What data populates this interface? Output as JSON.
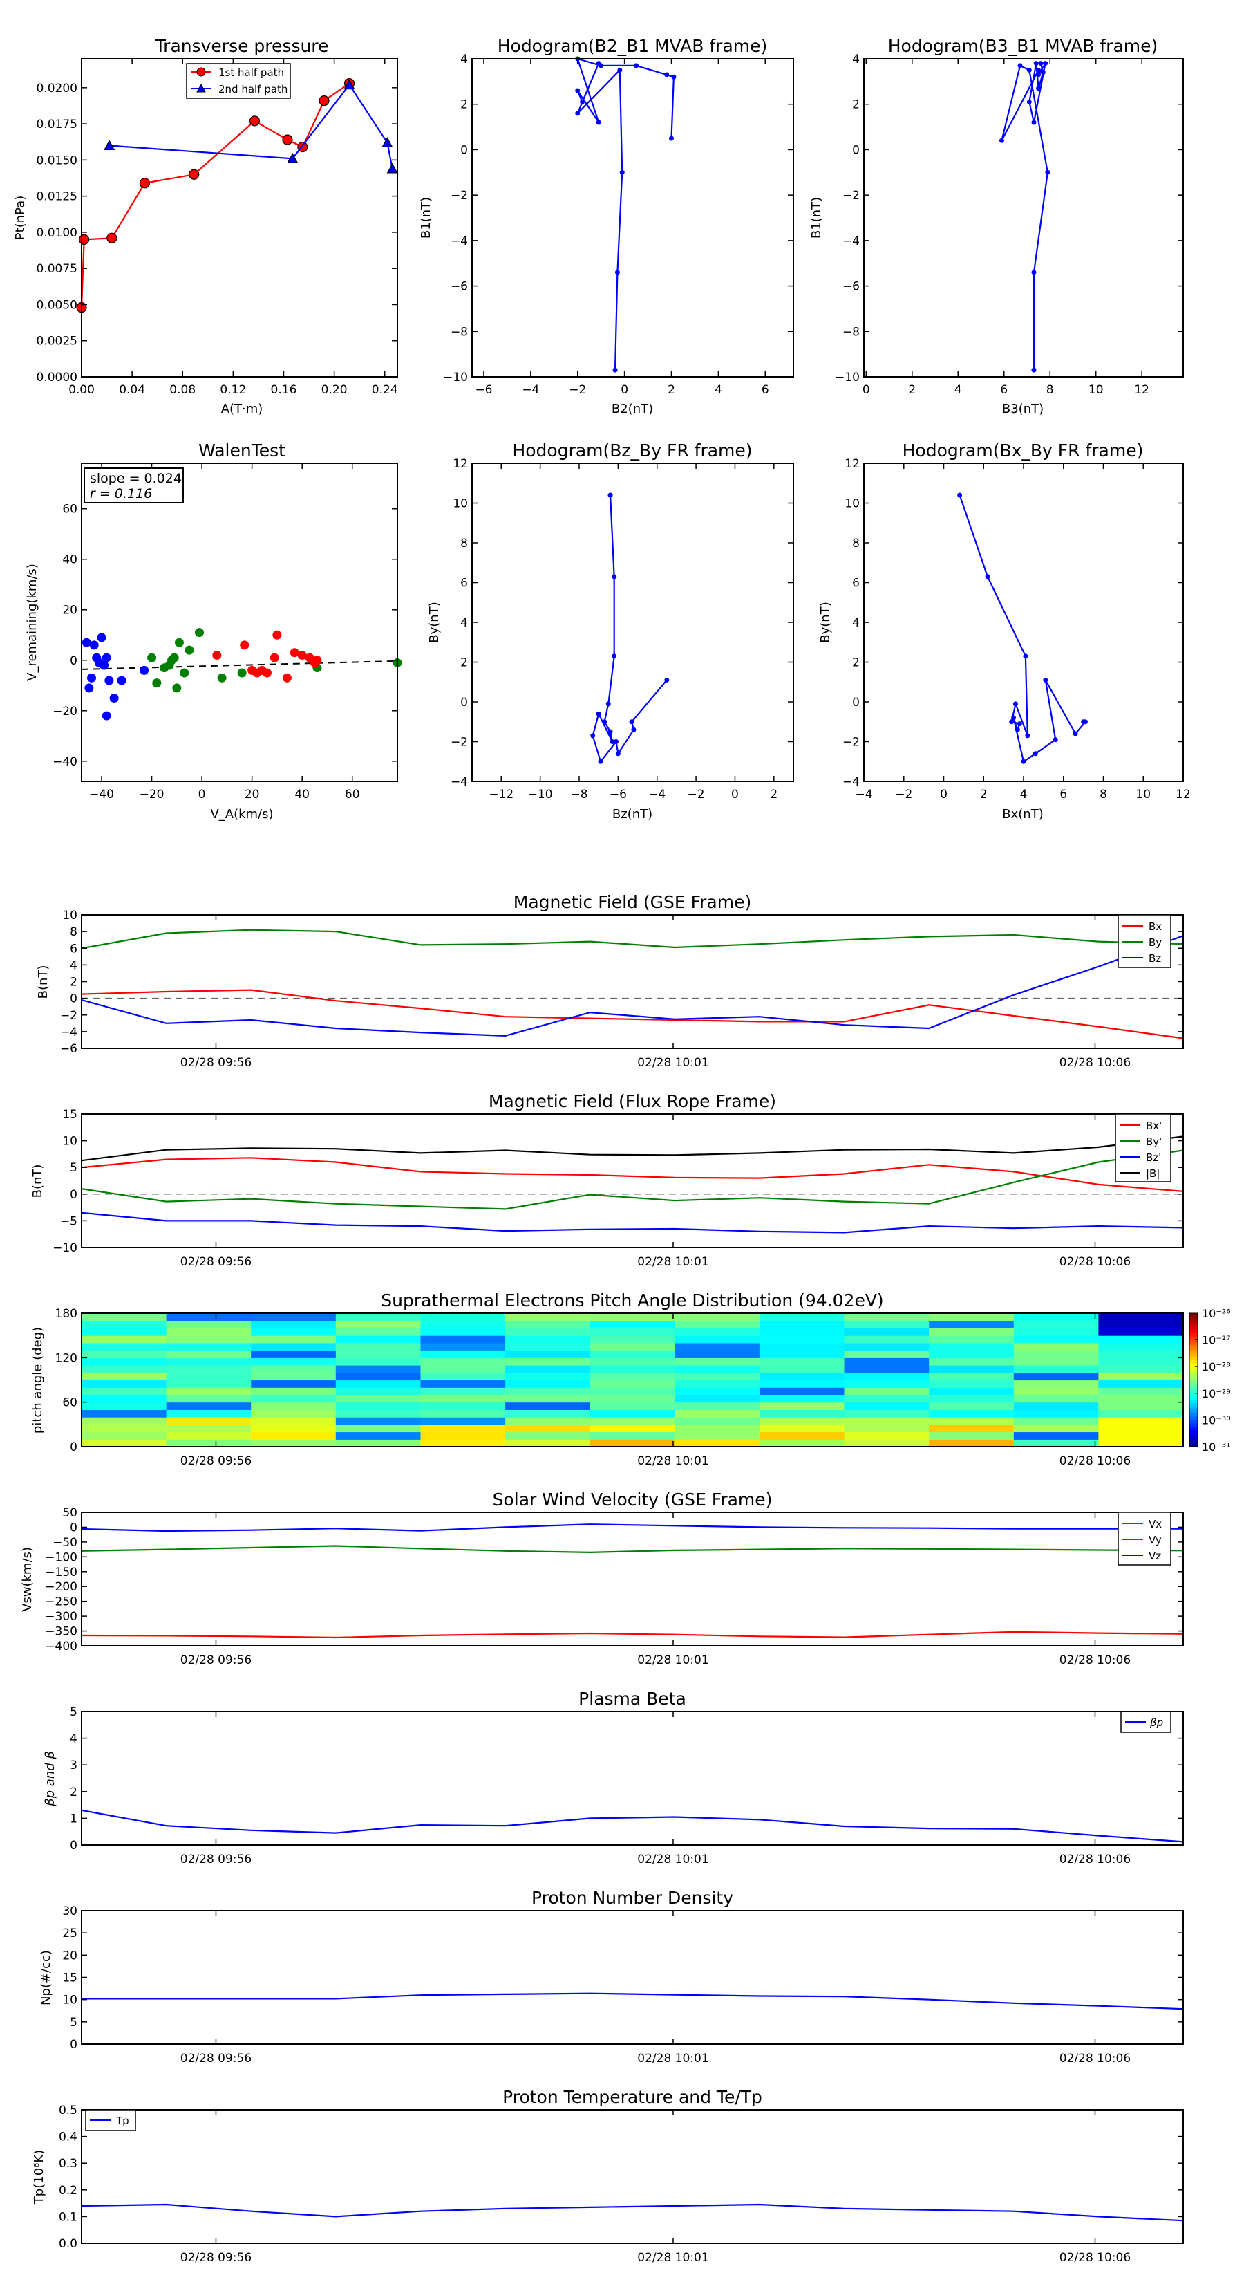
{
  "panels": {
    "transverse": {
      "title": "Transverse pressure",
      "xlabel": "A(T·m)",
      "ylabel": "Pt(nPa)",
      "xticks": [
        "0.00",
        "0.04",
        "0.08",
        "0.12",
        "0.16",
        "0.20",
        "0.24"
      ],
      "yticks": [
        "0.0000",
        "0.0025",
        "0.0050",
        "0.0075",
        "0.0100",
        "0.0125",
        "0.0150",
        "0.0175",
        "0.0200"
      ],
      "legend": [
        "1st half path",
        "2nd half path"
      ]
    },
    "hodo_b2b1": {
      "title": "Hodogram(B2_B1 MVAB frame)",
      "xlabel": "B2(nT)",
      "ylabel": "B1(nT)",
      "xticks": [
        "−6",
        "−4",
        "−2",
        "0",
        "2",
        "4",
        "6"
      ],
      "yticks": [
        "−10",
        "−8",
        "−6",
        "−4",
        "−2",
        "0",
        "2",
        "4"
      ]
    },
    "hodo_b3b1": {
      "title": "Hodogram(B3_B1 MVAB frame)",
      "xlabel": "B3(nT)",
      "ylabel": "B1(nT)",
      "xticks": [
        "0",
        "2",
        "4",
        "6",
        "8",
        "10",
        "12"
      ],
      "yticks": [
        "−10",
        "−8",
        "−6",
        "−4",
        "−2",
        "0",
        "2",
        "4"
      ]
    },
    "walen": {
      "title": "WalenTest",
      "xlabel": "V_A(km/s)",
      "ylabel": "V_remaining(km/s)",
      "xticks": [
        "−40",
        "−20",
        "0",
        "20",
        "40",
        "60"
      ],
      "yticks": [
        "−40",
        "−20",
        "0",
        "20",
        "40",
        "60"
      ],
      "annot1": "slope = 0.024",
      "annot2": "r = 0.116"
    },
    "hodo_bzby": {
      "title": "Hodogram(Bz_By FR frame)",
      "xlabel": "Bz(nT)",
      "ylabel": "By(nT)",
      "xticks": [
        "−12",
        "−10",
        "−8",
        "−6",
        "−4",
        "−2",
        "0",
        "2"
      ],
      "yticks": [
        "−4",
        "−2",
        "0",
        "2",
        "4",
        "6",
        "8",
        "10",
        "12"
      ]
    },
    "hodo_bxby": {
      "title": "Hodogram(Bx_By FR frame)",
      "xlabel": "Bx(nT)",
      "ylabel": "By(nT)",
      "xticks": [
        "−4",
        "−2",
        "0",
        "2",
        "4",
        "6",
        "8",
        "10",
        "12"
      ],
      "yticks": [
        "−4",
        "−2",
        "0",
        "2",
        "4",
        "6",
        "8",
        "10",
        "12"
      ]
    },
    "bgse": {
      "title": "Magnetic Field (GSE Frame)",
      "ylabel": "B(nT)",
      "yticks": [
        "−6",
        "−4",
        "−2",
        "0",
        "2",
        "4",
        "6",
        "8",
        "10"
      ],
      "legend": [
        "Bx",
        "By",
        "Bz"
      ]
    },
    "bfr": {
      "title": "Magnetic Field (Flux Rope Frame)",
      "ylabel": "B(nT)",
      "yticks": [
        "−10",
        "−5",
        "0",
        "5",
        "10",
        "15"
      ],
      "legend": [
        "Bx'",
        "By'",
        "Bz'",
        "|B|"
      ]
    },
    "pad": {
      "title": "Suprathermal Electrons Pitch Angle Distribution (94.02eV)",
      "ylabel": "pitch angle (deg)",
      "yticks": [
        "0",
        "60",
        "120",
        "180"
      ],
      "cbar_ticks": [
        "10⁻²⁶",
        "10⁻²⁷",
        "10⁻²⁸",
        "10⁻²⁹",
        "10⁻³⁰",
        "10⁻³¹"
      ]
    },
    "vsw": {
      "title": "Solar Wind Velocity (GSE Frame)",
      "ylabel": "Vsw(km/s)",
      "yticks": [
        "−400",
        "−350",
        "−300",
        "−250",
        "−200",
        "−150",
        "−100",
        "−50",
        "0",
        "50"
      ],
      "legend": [
        "Vx",
        "Vy",
        "Vz"
      ]
    },
    "beta": {
      "title": "Plasma Beta",
      "ylabel": "βp and β",
      "yticks": [
        "0",
        "1",
        "2",
        "3",
        "4",
        "5"
      ],
      "legend": [
        "βp"
      ]
    },
    "np": {
      "title": "Proton Number Density",
      "ylabel": "Np(#/cc)",
      "yticks": [
        "0",
        "5",
        "10",
        "15",
        "20",
        "25",
        "30"
      ]
    },
    "tp": {
      "title": "Proton Temperature and Te/Tp",
      "ylabel": "Tp(10⁶K)",
      "yticks": [
        "0.0",
        "0.1",
        "0.2",
        "0.3",
        "0.4",
        "0.5"
      ],
      "legend": [
        "Tp"
      ]
    },
    "time_ticks": [
      "02/28 09:56",
      "02/28 10:01",
      "02/28 10:06"
    ]
  },
  "colors": {
    "red": "#ff0000",
    "green": "#008000",
    "blue": "#0000ff",
    "black": "#000000"
  },
  "chart_data": [
    {
      "id": "transverse",
      "type": "scatter",
      "xlim": [
        0,
        0.25
      ],
      "ylim": [
        0,
        0.022
      ],
      "series": [
        {
          "name": "1st half path",
          "color": "#ff0000",
          "marker": "circle",
          "x": [
            0.0,
            0.002,
            0.024,
            0.05,
            0.089,
            0.137,
            0.163,
            0.175,
            0.192,
            0.212
          ],
          "y": [
            0.0048,
            0.0095,
            0.0096,
            0.0134,
            0.014,
            0.0177,
            0.0164,
            0.0159,
            0.0191,
            0.0203
          ]
        },
        {
          "name": "2nd half path",
          "color": "#0000ff",
          "marker": "triangle",
          "x": [
            0.022,
            0.167,
            0.212,
            0.242,
            0.246
          ],
          "y": [
            0.016,
            0.0151,
            0.0202,
            0.0162,
            0.0144
          ]
        }
      ]
    },
    {
      "id": "hodo_b2b1",
      "type": "line",
      "xlim": [
        -6.5,
        7.2
      ],
      "ylim": [
        -10,
        4
      ],
      "series": [
        {
          "name": "B",
          "color": "#0000ff",
          "x": [
            -0.4,
            -0.3,
            -0.1,
            -0.2,
            -2.0,
            -1.1,
            -1.8,
            -2.0,
            -1.1,
            -2.0,
            -1.0,
            0.5,
            1.8,
            2.1,
            2.0
          ],
          "y": [
            -9.7,
            -5.4,
            -1.0,
            3.5,
            1.6,
            3.8,
            2.1,
            2.6,
            1.2,
            4.0,
            3.7,
            3.7,
            3.3,
            3.2,
            0.5
          ]
        }
      ]
    },
    {
      "id": "hodo_b3b1",
      "type": "line",
      "xlim": [
        -0.1,
        13.8
      ],
      "ylim": [
        -10,
        4
      ],
      "series": [
        {
          "name": "B",
          "color": "#0000ff",
          "x": [
            7.3,
            7.3,
            7.9,
            7.1,
            6.7,
            5.9,
            7.5,
            7.5,
            7.8,
            7.3,
            7.1,
            7.4,
            7.5,
            7.7,
            7.6
          ],
          "y": [
            -9.7,
            -5.4,
            -1.0,
            3.5,
            3.7,
            0.4,
            3.5,
            3.3,
            3.8,
            1.2,
            2.1,
            3.8,
            2.7,
            3.4,
            3.8
          ]
        }
      ]
    },
    {
      "id": "walen",
      "type": "scatter",
      "xlim": [
        -48,
        78
      ],
      "ylim": [
        -48,
        78
      ],
      "fit_line": {
        "x": [
          -48,
          78
        ],
        "y": [
          -3.6,
          -0.3
        ]
      },
      "series": [
        {
          "name": "blue",
          "color": "#0000ff",
          "x": [
            -46,
            -45,
            -44,
            -43,
            -42,
            -41,
            -40,
            -39,
            -38,
            -38,
            -37,
            -35,
            -32,
            -23
          ],
          "y": [
            7,
            -11,
            -7,
            6,
            1,
            -1,
            9,
            -2,
            -22,
            1,
            -8,
            -15,
            -8,
            -4
          ]
        },
        {
          "name": "green",
          "color": "#008000",
          "x": [
            -20,
            -18,
            -15,
            -13,
            -12,
            -11,
            -10,
            -9,
            -7,
            -5,
            -1,
            8,
            16,
            46,
            78
          ],
          "y": [
            1,
            -9,
            -3,
            -2,
            0,
            1,
            -11,
            7,
            -5,
            4,
            11,
            -7,
            -5,
            -3,
            -1
          ]
        },
        {
          "name": "red",
          "color": "#ff0000",
          "x": [
            6,
            17,
            20,
            22,
            24,
            26,
            29,
            30,
            34,
            37,
            40,
            43,
            45,
            46
          ],
          "y": [
            2,
            6,
            -4,
            -5,
            -4,
            -5,
            1,
            10,
            -7,
            3,
            2,
            1,
            -1,
            0
          ]
        }
      ]
    },
    {
      "id": "hodo_bzby",
      "type": "line",
      "xlim": [
        -13.5,
        3
      ],
      "ylim": [
        -4,
        12
      ],
      "series": [
        {
          "name": "B",
          "color": "#0000ff",
          "x": [
            -6.4,
            -6.4,
            -6.2,
            -6.2,
            -6.5,
            -6.7,
            -6.4,
            -6.3,
            -7.0,
            -7.3,
            -6.9,
            -6.1,
            -6.0,
            -5.2,
            -5.3,
            -3.5
          ],
          "y": [
            10.4,
            10.4,
            6.3,
            2.3,
            -0.1,
            -1.0,
            -1.5,
            -2.0,
            -0.6,
            -1.7,
            -3.0,
            -2.0,
            -2.6,
            -1.4,
            -1.0,
            1.1
          ]
        }
      ]
    },
    {
      "id": "hodo_bxby",
      "type": "line",
      "xlim": [
        -4,
        12
      ],
      "ylim": [
        -4,
        12
      ],
      "series": [
        {
          "name": "B",
          "color": "#0000ff",
          "x": [
            0.8,
            2.2,
            4.1,
            4.2,
            3.6,
            3.4,
            3.8,
            3.7,
            3.5,
            4.0,
            4.6,
            5.6,
            5.1,
            6.6,
            7.1,
            7.0
          ],
          "y": [
            10.4,
            6.3,
            2.3,
            -1.7,
            -0.1,
            -1.0,
            -1.1,
            -1.4,
            -0.8,
            -3.0,
            -2.6,
            -1.9,
            1.1,
            -1.6,
            -1.0,
            -1.0
          ]
        }
      ]
    },
    {
      "id": "bgse",
      "type": "line",
      "ylim": [
        -6,
        10
      ],
      "x": [
        0,
        1,
        2,
        3,
        4,
        5,
        6,
        7,
        8,
        9,
        10,
        11,
        12,
        13
      ],
      "series": [
        {
          "name": "Bx",
          "color": "#ff0000",
          "values": [
            0.5,
            0.8,
            1.0,
            -0.3,
            -1.2,
            -2.2,
            -2.4,
            -2.6,
            -2.8,
            -2.8,
            -0.8,
            -2.1,
            -3.4,
            -4.8
          ]
        },
        {
          "name": "By",
          "color": "#008000",
          "values": [
            6.0,
            7.8,
            8.2,
            8.0,
            6.4,
            6.5,
            6.8,
            6.1,
            6.5,
            7.0,
            7.4,
            7.6,
            6.8,
            6.5
          ]
        },
        {
          "name": "Bz",
          "color": "#0000ff",
          "values": [
            -0.2,
            -3.0,
            -2.6,
            -3.6,
            -4.1,
            -4.5,
            -1.7,
            -2.5,
            -2.2,
            -3.2,
            -3.6,
            0.4,
            3.8,
            7.5
          ]
        }
      ]
    },
    {
      "id": "bfr",
      "type": "line",
      "ylim": [
        -10,
        15
      ],
      "x": [
        0,
        1,
        2,
        3,
        4,
        5,
        6,
        7,
        8,
        9,
        10,
        11,
        12,
        13
      ],
      "series": [
        {
          "name": "Bx'",
          "color": "#ff0000",
          "values": [
            5.0,
            6.5,
            6.8,
            6.0,
            4.2,
            3.8,
            3.6,
            3.1,
            3.0,
            3.8,
            5.5,
            4.2,
            1.8,
            0.5
          ]
        },
        {
          "name": "By'",
          "color": "#008000",
          "values": [
            1.0,
            -1.4,
            -0.9,
            -1.8,
            -2.3,
            -2.8,
            -0.1,
            -1.2,
            -0.7,
            -1.4,
            -1.8,
            2.2,
            6.0,
            8.2
          ]
        },
        {
          "name": "Bz'",
          "color": "#0000ff",
          "values": [
            -3.5,
            -5.0,
            -5.0,
            -5.8,
            -6.0,
            -6.9,
            -6.6,
            -6.5,
            -7.0,
            -7.2,
            -6.0,
            -6.4,
            -6.0,
            -6.3
          ]
        },
        {
          "name": "|B|",
          "color": "#000000",
          "values": [
            6.3,
            8.3,
            8.6,
            8.5,
            7.7,
            8.2,
            7.4,
            7.3,
            7.7,
            8.3,
            8.4,
            7.7,
            8.8,
            10.8
          ]
        }
      ]
    },
    {
      "id": "pad",
      "type": "heatmap",
      "ylim": [
        0,
        180
      ],
      "columns": 13,
      "rows": 18,
      "colormap": "jet",
      "log_range": [
        -31,
        -26
      ]
    },
    {
      "id": "vsw",
      "type": "line",
      "ylim": [
        -400,
        50
      ],
      "x": [
        0,
        1,
        2,
        3,
        4,
        5,
        6,
        7,
        8,
        9,
        10,
        11,
        12,
        13
      ],
      "series": [
        {
          "name": "Vx",
          "color": "#ff0000",
          "values": [
            -365,
            -366,
            -368,
            -372,
            -365,
            -361,
            -358,
            -362,
            -368,
            -371,
            -362,
            -353,
            -357,
            -360
          ]
        },
        {
          "name": "Vy",
          "color": "#008000",
          "values": [
            -80,
            -75,
            -69,
            -63,
            -72,
            -80,
            -85,
            -78,
            -75,
            -72,
            -73,
            -75,
            -77,
            -79
          ]
        },
        {
          "name": "Vz",
          "color": "#0000ff",
          "values": [
            -6,
            -13,
            -10,
            -4,
            -12,
            0,
            10,
            5,
            0,
            -2,
            -3,
            -5,
            -5,
            -5
          ]
        }
      ]
    },
    {
      "id": "beta",
      "type": "line",
      "ylim": [
        0,
        5
      ],
      "x": [
        0,
        1,
        2,
        3,
        4,
        5,
        6,
        7,
        8,
        9,
        10,
        11,
        12,
        13
      ],
      "series": [
        {
          "name": "βp",
          "color": "#0000ff",
          "values": [
            1.3,
            0.72,
            0.55,
            0.45,
            0.75,
            0.72,
            1.0,
            1.05,
            0.95,
            0.7,
            0.62,
            0.6,
            0.35,
            0.12
          ]
        }
      ]
    },
    {
      "id": "np",
      "type": "line",
      "ylim": [
        0,
        30
      ],
      "x": [
        0,
        1,
        2,
        3,
        4,
        5,
        6,
        7,
        8,
        9,
        10,
        11,
        12,
        13
      ],
      "series": [
        {
          "name": "Np",
          "color": "#0000ff",
          "values": [
            10.2,
            10.2,
            10.2,
            10.2,
            11.0,
            11.2,
            11.4,
            11.1,
            10.8,
            10.7,
            10.0,
            9.2,
            8.6,
            7.9
          ]
        }
      ]
    },
    {
      "id": "tp",
      "type": "line",
      "ylim": [
        0,
        0.5
      ],
      "x": [
        0,
        1,
        2,
        3,
        4,
        5,
        6,
        7,
        8,
        9,
        10,
        11,
        12,
        13
      ],
      "series": [
        {
          "name": "Tp",
          "color": "#0000ff",
          "values": [
            0.14,
            0.145,
            0.12,
            0.1,
            0.12,
            0.13,
            0.135,
            0.14,
            0.145,
            0.13,
            0.125,
            0.12,
            0.1,
            0.085
          ]
        }
      ]
    }
  ]
}
